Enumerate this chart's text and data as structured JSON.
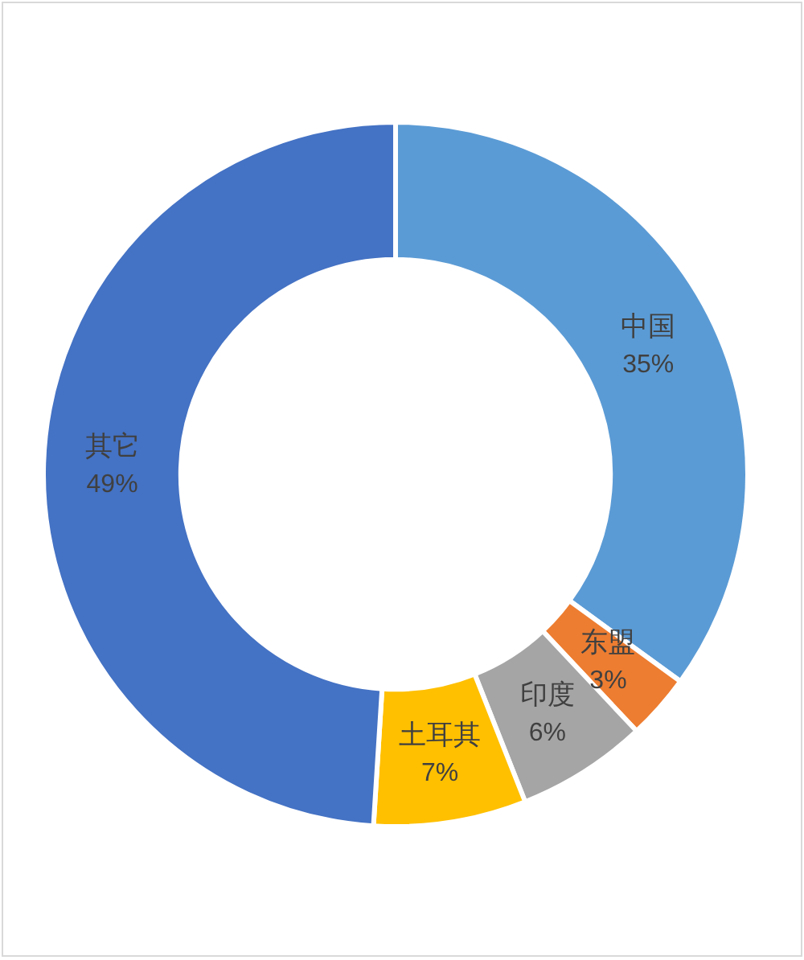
{
  "chart_data": {
    "type": "donut",
    "categories": [
      "中国",
      "东盟",
      "印度",
      "土耳其",
      "其它"
    ],
    "values": [
      35,
      3,
      6,
      7,
      49
    ],
    "colors": [
      "#5b9bd5",
      "#ed7d31",
      "#a5a5a5",
      "#ffc000",
      "#4472c4"
    ],
    "value_labels": [
      "35%",
      "3%",
      "6%",
      "7%",
      "49%"
    ]
  }
}
